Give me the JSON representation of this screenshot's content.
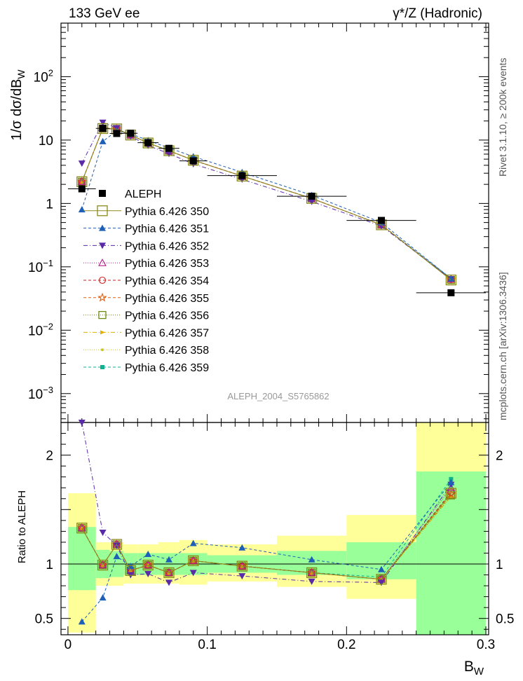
{
  "header": {
    "energy_label": "133 GeV ee",
    "process_label": "γ*/Z (Hadronic)",
    "analysis_id": "ALEPH_2004_S5765862"
  },
  "side_text": {
    "rivet": "Rivet 3.1.10, ≥ 200k events",
    "mcplots": "mcplots.cern.ch [arXiv:1306.3436]"
  },
  "axes": {
    "main_ylabel": "1/σ  dσ/dB_W",
    "ratio_ylabel": "Ratio to ALEPH",
    "xlabel": "B_W"
  },
  "chart_data": [
    {
      "type": "scatter",
      "panel": "main",
      "y_scale": "log",
      "xlim": [
        -0.005,
        0.302
      ],
      "ylim": [
        0.00035,
        700
      ],
      "x_ticks": [
        0,
        0.1,
        0.2,
        0.3
      ],
      "y_ticks": [
        {
          "value": 0.001,
          "base": "10",
          "exp": "−3"
        },
        {
          "value": 0.01,
          "base": "10",
          "exp": "−2"
        },
        {
          "value": 0.1,
          "base": "10",
          "exp": "−1"
        },
        {
          "value": 1,
          "base": "1",
          "exp": ""
        },
        {
          "value": 10,
          "base": "10",
          "exp": ""
        },
        {
          "value": 100,
          "base": "10",
          "exp": "2"
        }
      ],
      "legend_position": "middle-left",
      "x": [
        0.01,
        0.025,
        0.035,
        0.045,
        0.0575,
        0.0725,
        0.09,
        0.125,
        0.175,
        0.225,
        0.275
      ],
      "data": {
        "name": "ALEPH",
        "color": "#000000",
        "values": [
          1.7,
          15.3,
          12.7,
          12.8,
          9.1,
          7.4,
          4.7,
          2.75,
          1.3,
          0.54,
          0.039
        ],
        "xerr": [
          0.01,
          0.005,
          0.005,
          0.005,
          0.0075,
          0.0075,
          0.01,
          0.025,
          0.025,
          0.025,
          0.025
        ]
      },
      "series": [
        {
          "name": "Pythia 6.426 350",
          "color": "#8a8a1a",
          "marker": "open-square-large",
          "line": "solid",
          "values": [
            2.2,
            15.2,
            15.0,
            12.0,
            9.0,
            6.8,
            4.8,
            2.7,
            1.2,
            0.46,
            0.062
          ]
        },
        {
          "name": "Pythia 6.426 351",
          "color": "#1f5fb8",
          "marker": "triangle-up",
          "line": "dashed",
          "values": [
            0.8,
            9.5,
            14.0,
            12.5,
            9.9,
            7.5,
            5.5,
            3.1,
            1.35,
            0.5,
            0.065
          ]
        },
        {
          "name": "Pythia 6.426 352",
          "color": "#5a2aa8",
          "marker": "triangle-down",
          "line": "dashdot",
          "values": [
            4.3,
            19.0,
            15.5,
            11.5,
            8.2,
            6.1,
            4.2,
            2.4,
            1.07,
            0.44,
            0.064
          ]
        },
        {
          "name": "Pythia 6.426 353",
          "color": "#b0208a",
          "marker": "open-triangle",
          "line": "dotted",
          "values": [
            2.2,
            15.2,
            15.0,
            12.0,
            9.0,
            6.8,
            4.8,
            2.7,
            1.2,
            0.46,
            0.064
          ]
        },
        {
          "name": "Pythia 6.426 354",
          "color": "#d02020",
          "marker": "open-circle",
          "line": "dashed",
          "values": [
            2.2,
            15.2,
            15.0,
            12.0,
            9.0,
            6.8,
            4.8,
            2.7,
            1.2,
            0.46,
            0.063
          ]
        },
        {
          "name": "Pythia 6.426 355",
          "color": "#e06010",
          "marker": "open-star",
          "line": "dashed",
          "values": [
            2.2,
            15.2,
            15.0,
            12.0,
            9.0,
            6.8,
            4.8,
            2.7,
            1.2,
            0.46,
            0.063
          ]
        },
        {
          "name": "Pythia 6.426 356",
          "color": "#6a8a10",
          "marker": "open-square",
          "line": "dotted",
          "values": [
            2.2,
            15.2,
            15.0,
            12.0,
            9.0,
            6.8,
            4.8,
            2.7,
            1.2,
            0.46,
            0.062
          ]
        },
        {
          "name": "Pythia 6.426 357",
          "color": "#e0b000",
          "marker": "small-triangle",
          "line": "dashdot",
          "values": [
            2.2,
            15.2,
            15.0,
            12.0,
            9.0,
            6.8,
            4.8,
            2.7,
            1.2,
            0.46,
            0.062
          ]
        },
        {
          "name": "Pythia 6.426 358",
          "color": "#c8c820",
          "marker": "small-dot",
          "line": "dotted",
          "values": [
            2.2,
            15.2,
            15.0,
            12.0,
            9.0,
            6.8,
            4.8,
            2.7,
            1.2,
            0.46,
            0.062
          ]
        },
        {
          "name": "Pythia 6.426 359",
          "color": "#10b090",
          "marker": "filled-square",
          "line": "dashed",
          "values": [
            2.2,
            15.2,
            15.0,
            12.0,
            9.0,
            6.8,
            4.8,
            2.7,
            1.2,
            0.46,
            0.066
          ]
        }
      ]
    },
    {
      "type": "scatter",
      "panel": "ratio",
      "y_scale": "linear",
      "xlim": [
        -0.005,
        0.302
      ],
      "ylim": [
        0.35,
        2.3
      ],
      "x_ticks": [
        0,
        0.1,
        0.2,
        0.3
      ],
      "y_ticks_left": [
        0.5,
        1,
        2
      ],
      "y_ticks_right": [
        0.5,
        1,
        2
      ],
      "x_tick_labels": [
        "0",
        "0.1",
        "0.2",
        "0.3"
      ],
      "y_tick_labels": [
        "0.5",
        "1",
        "2"
      ],
      "bands": [
        {
          "x0": 0.0,
          "x1": 0.02,
          "yellow": [
            0.37,
            1.65
          ],
          "green": [
            0.76,
            1.34
          ]
        },
        {
          "x0": 0.02,
          "x1": 0.03,
          "yellow": [
            0.8,
            1.2
          ],
          "green": [
            0.87,
            1.13
          ]
        },
        {
          "x0": 0.03,
          "x1": 0.04,
          "yellow": [
            0.8,
            1.2
          ],
          "green": [
            0.88,
            1.12
          ]
        },
        {
          "x0": 0.04,
          "x1": 0.05,
          "yellow": [
            0.82,
            1.18
          ],
          "green": [
            0.9,
            1.1
          ]
        },
        {
          "x0": 0.05,
          "x1": 0.065,
          "yellow": [
            0.82,
            1.18
          ],
          "green": [
            0.9,
            1.1
          ]
        },
        {
          "x0": 0.065,
          "x1": 0.08,
          "yellow": [
            0.82,
            1.2
          ],
          "green": [
            0.9,
            1.1
          ]
        },
        {
          "x0": 0.08,
          "x1": 0.1,
          "yellow": [
            0.81,
            1.22
          ],
          "green": [
            0.9,
            1.1
          ]
        },
        {
          "x0": 0.1,
          "x1": 0.15,
          "yellow": [
            0.84,
            1.18
          ],
          "green": [
            0.92,
            1.08
          ]
        },
        {
          "x0": 0.15,
          "x1": 0.2,
          "yellow": [
            0.79,
            1.26
          ],
          "green": [
            0.9,
            1.12
          ]
        },
        {
          "x0": 0.2,
          "x1": 0.25,
          "yellow": [
            0.68,
            1.45
          ],
          "green": [
            0.86,
            1.2
          ]
        },
        {
          "x0": 0.25,
          "x1": 0.3,
          "yellow": [
            0.35,
            2.3
          ],
          "green": [
            0.35,
            1.85
          ]
        }
      ],
      "reference_line": 1,
      "series": [
        {
          "name": "Pythia 6.426 350",
          "values": [
            1.33,
            0.99,
            1.18,
            0.94,
            0.99,
            0.92,
            1.03,
            0.98,
            0.92,
            0.86,
            1.65
          ]
        },
        {
          "name": "Pythia 6.426 351",
          "values": [
            0.47,
            0.69,
            1.07,
            0.98,
            1.09,
            1.04,
            1.19,
            1.15,
            1.04,
            0.95,
            1.75
          ]
        },
        {
          "name": "Pythia 6.426 352",
          "values": [
            2.3,
            1.29,
            1.17,
            0.9,
            0.91,
            0.83,
            0.92,
            0.89,
            0.84,
            0.83,
            1.73
          ]
        },
        {
          "name": "Pythia 6.426 353",
          "values": [
            1.33,
            0.99,
            1.18,
            0.94,
            0.99,
            0.92,
            1.03,
            0.98,
            0.92,
            0.86,
            1.7
          ]
        },
        {
          "name": "Pythia 6.426 354",
          "values": [
            1.33,
            0.99,
            1.18,
            0.94,
            0.99,
            0.92,
            1.03,
            0.98,
            0.92,
            0.86,
            1.66
          ]
        },
        {
          "name": "Pythia 6.426 355",
          "values": [
            1.33,
            0.99,
            1.18,
            0.94,
            0.99,
            0.92,
            1.03,
            0.98,
            0.92,
            0.86,
            1.64
          ]
        },
        {
          "name": "Pythia 6.426 356",
          "values": [
            1.33,
            0.99,
            1.18,
            0.94,
            0.99,
            0.92,
            1.03,
            0.98,
            0.92,
            0.86,
            1.63
          ]
        },
        {
          "name": "Pythia 6.426 357",
          "values": [
            1.33,
            0.99,
            1.18,
            0.94,
            0.99,
            0.92,
            1.03,
            0.98,
            0.92,
            0.86,
            1.62
          ]
        },
        {
          "name": "Pythia 6.426 358",
          "values": [
            1.33,
            0.99,
            1.18,
            0.94,
            0.99,
            0.92,
            1.03,
            0.98,
            0.92,
            0.86,
            1.62
          ]
        },
        {
          "name": "Pythia 6.426 359",
          "values": [
            1.33,
            0.99,
            1.18,
            0.94,
            0.99,
            0.92,
            1.03,
            0.98,
            0.92,
            0.88,
            1.78
          ]
        }
      ]
    }
  ]
}
